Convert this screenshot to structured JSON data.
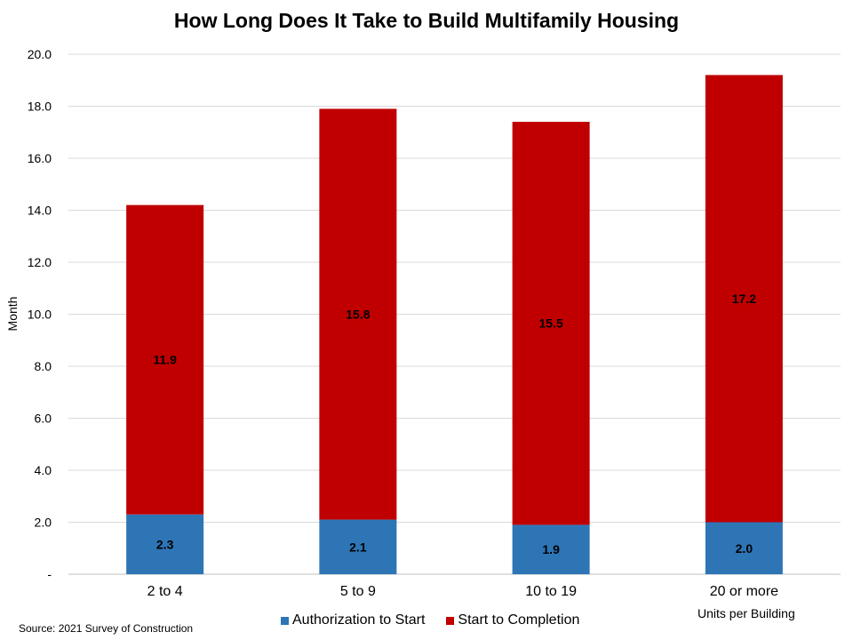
{
  "chart_data": {
    "type": "bar",
    "stacked": true,
    "title": "How Long Does It Take to Build Multifamily Housing",
    "ylabel": "Month",
    "xlabel": "Units per Building",
    "ylim": [
      0,
      20
    ],
    "yticks": [
      "-",
      "2.0",
      "4.0",
      "6.0",
      "8.0",
      "10.0",
      "12.0",
      "14.0",
      "16.0",
      "18.0",
      "20.0"
    ],
    "grid": true,
    "legend_position": "bottom",
    "categories": [
      "2 to 4",
      "5 to 9",
      "10 to 19",
      "20 or more"
    ],
    "series": [
      {
        "name": "Authorization to Start",
        "color": "#2E75B6",
        "values": [
          2.3,
          2.1,
          1.9,
          2.0
        ],
        "labels": [
          "2.3",
          "2.1",
          "1.9",
          "2.0"
        ]
      },
      {
        "name": "Start to Completion",
        "color": "#C00000",
        "values": [
          11.9,
          15.8,
          15.5,
          17.2
        ],
        "labels": [
          "11.9",
          "15.8",
          "15.5",
          "17.2"
        ]
      }
    ],
    "source": "Source: 2021 Survey of Construction"
  }
}
